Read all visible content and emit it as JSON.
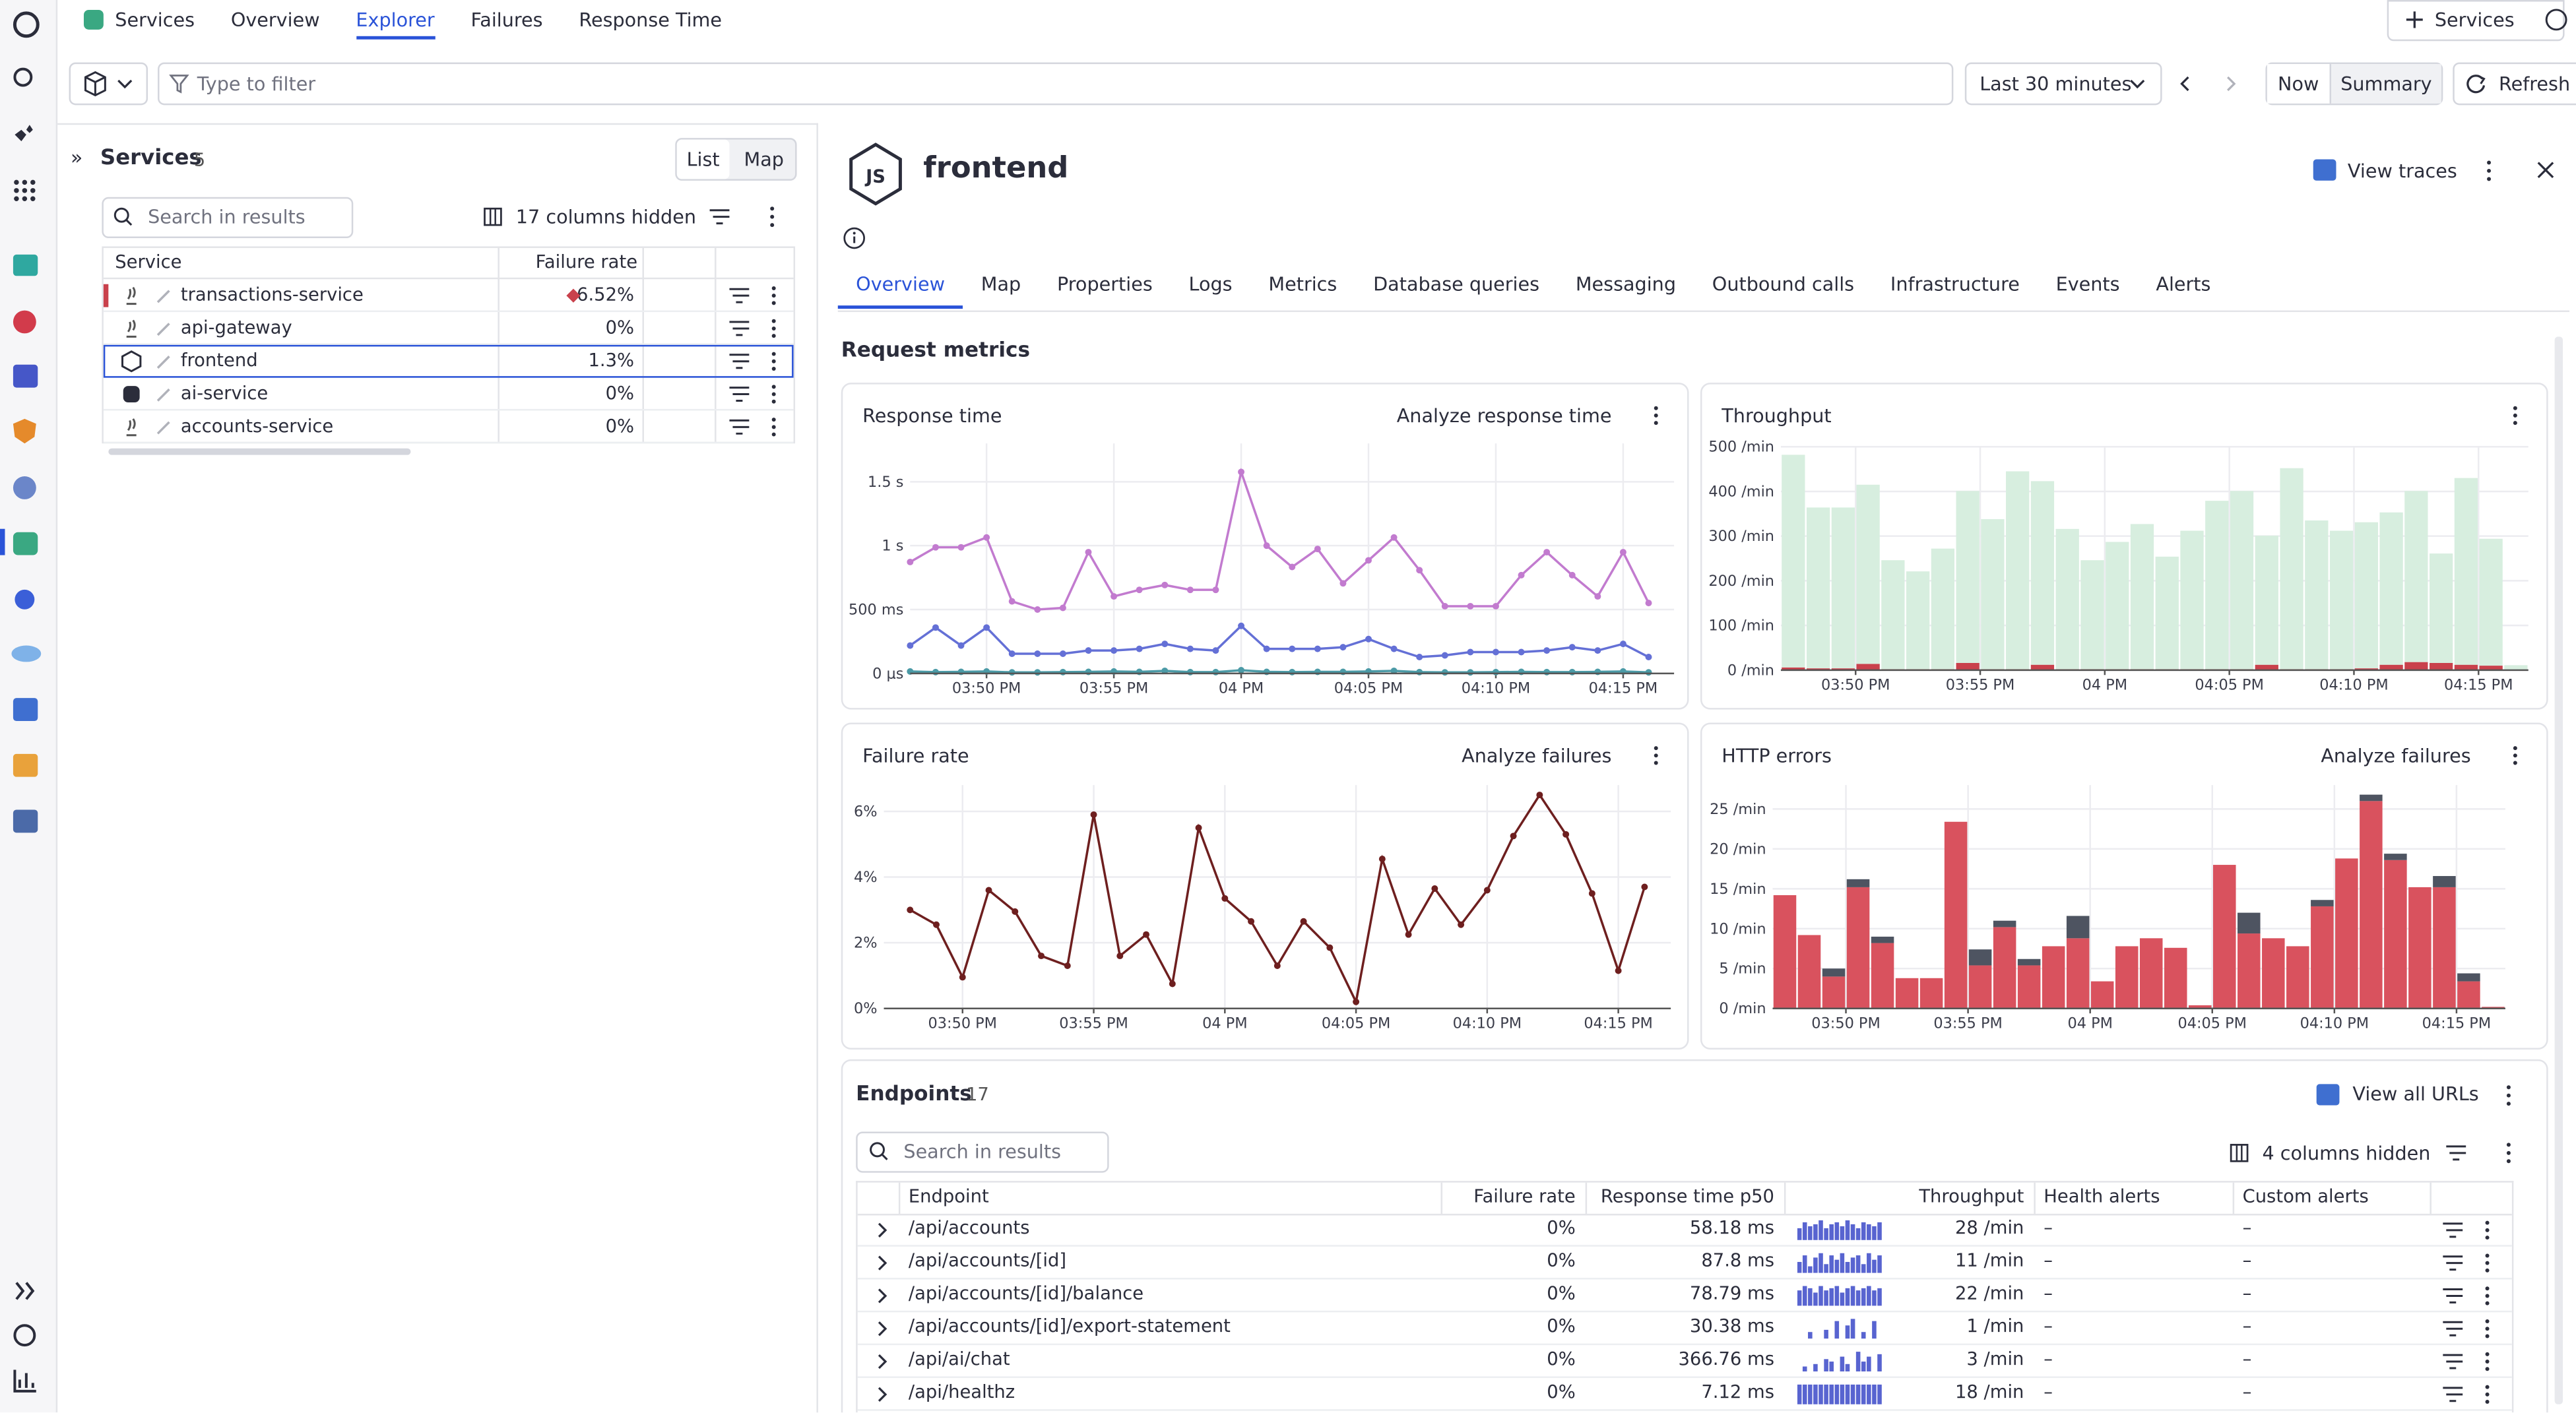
{
  "nav": {
    "tabs": [
      "Services",
      "Overview",
      "Explorer",
      "Failures",
      "Response Time"
    ],
    "add_button": "Services"
  },
  "filter": {
    "placeholder": "Type to filter",
    "timeframe": "Last 30 minutes",
    "now": "Now",
    "summary": "Summary",
    "refresh": "Refresh"
  },
  "services_panel": {
    "title": "Services",
    "count": 5,
    "views": [
      "List",
      "Map"
    ],
    "search_placeholder": "Search in results",
    "columns_hidden": "17 columns hidden",
    "columns": [
      "Service",
      "Failure rate"
    ],
    "rows": [
      {
        "name": "transactions-service",
        "failure_rate": "6.52%"
      },
      {
        "name": "api-gateway",
        "failure_rate": "0%"
      },
      {
        "name": "frontend",
        "failure_rate": "1.3%"
      },
      {
        "name": "ai-service",
        "failure_rate": "0%"
      },
      {
        "name": "accounts-service",
        "failure_rate": "0%"
      }
    ]
  },
  "detail": {
    "title": "frontend",
    "view_traces": "View traces",
    "tabs": [
      "Overview",
      "Map",
      "Properties",
      "Logs",
      "Metrics",
      "Database queries",
      "Messaging",
      "Outbound calls",
      "Infrastructure",
      "Events",
      "Alerts"
    ],
    "section_title": "Request metrics"
  },
  "chart_data": [
    {
      "type": "line",
      "title": "Response time",
      "action": "Analyze response time",
      "grid": true,
      "x": [
        "15:47",
        "15:48",
        "15:49",
        "15:50",
        "15:51",
        "15:52",
        "15:53",
        "15:54",
        "15:55",
        "15:56",
        "15:57",
        "15:58",
        "15:59",
        "16:00",
        "16:01",
        "16:02",
        "16:03",
        "16:04",
        "16:05",
        "16:06",
        "16:07",
        "16:08",
        "16:09",
        "16:10",
        "16:11",
        "16:12",
        "16:13",
        "16:14",
        "16:15",
        "16:16"
      ],
      "xlim": [
        "15:47",
        "16:17"
      ],
      "xticks": [
        {
          "value": "15:50",
          "label": "03:50 PM"
        },
        {
          "value": "15:55",
          "label": "03:55 PM"
        },
        {
          "value": "16:00",
          "label": "04 PM"
        },
        {
          "value": "16:05",
          "label": "04:05 PM"
        },
        {
          "value": "16:10",
          "label": "04:10 PM"
        },
        {
          "value": "16:15",
          "label": "04:15 PM"
        }
      ],
      "ylim": [
        0,
        1800
      ],
      "yticks": [
        {
          "value": 0,
          "label": "0 μs"
        },
        {
          "value": 500,
          "label": "500 ms"
        },
        {
          "value": 1000,
          "label": "1 s"
        },
        {
          "value": 1500,
          "label": "1.5 s"
        }
      ],
      "series": [
        {
          "color": "#c27bcf",
          "values": [
            872,
            987,
            987,
            1064,
            564,
            500,
            513,
            949,
            603,
            654,
            692,
            654,
            654,
            1577,
            1000,
            833,
            974,
            705,
            885,
            1064,
            808,
            526,
            526,
            526,
            769,
            949,
            769,
            603,
            949,
            551
          ]
        },
        {
          "color": "#6470d6",
          "values": [
            218,
            359,
            218,
            359,
            154,
            154,
            154,
            179,
            179,
            192,
            231,
            192,
            179,
            372,
            192,
            192,
            192,
            205,
            269,
            192,
            128,
            141,
            167,
            167,
            167,
            179,
            205,
            179,
            231,
            128
          ]
        },
        {
          "color": "#4b9aa6",
          "values": [
            15,
            10,
            12,
            15,
            8,
            8,
            10,
            12,
            15,
            12,
            20,
            10,
            10,
            25,
            12,
            10,
            12,
            12,
            15,
            20,
            10,
            8,
            8,
            10,
            12,
            10,
            10,
            12,
            15,
            8
          ]
        }
      ]
    },
    {
      "type": "bar",
      "stacked": true,
      "title": "Throughput",
      "grid": true,
      "x": [
        "15:47",
        "15:48",
        "15:49",
        "15:50",
        "15:51",
        "15:52",
        "15:53",
        "15:54",
        "15:55",
        "15:56",
        "15:57",
        "15:58",
        "15:59",
        "16:00",
        "16:01",
        "16:02",
        "16:03",
        "16:04",
        "16:05",
        "16:06",
        "16:07",
        "16:08",
        "16:09",
        "16:10",
        "16:11",
        "16:12",
        "16:13",
        "16:14",
        "16:15",
        "16:16"
      ],
      "xlim": [
        "15:47",
        "16:17"
      ],
      "xticks": [
        {
          "value": "15:50",
          "label": "03:50 PM"
        },
        {
          "value": "15:55",
          "label": "03:55 PM"
        },
        {
          "value": "16:00",
          "label": "04 PM"
        },
        {
          "value": "16:05",
          "label": "04:05 PM"
        },
        {
          "value": "16:10",
          "label": "04:10 PM"
        },
        {
          "value": "16:15",
          "label": "04:15 PM"
        }
      ],
      "ylim": [
        0,
        500
      ],
      "yticks": [
        {
          "value": 0,
          "label": "0 /min"
        },
        {
          "value": 100,
          "label": "100 /min"
        },
        {
          "value": 200,
          "label": "200 /min"
        },
        {
          "value": 300,
          "label": "300 /min"
        },
        {
          "value": 400,
          "label": "400 /min"
        },
        {
          "value": 500,
          "label": "500 /min"
        }
      ],
      "series": [
        {
          "color": "#c9414c",
          "values": [
            6,
            4,
            4,
            14,
            2,
            2,
            2,
            16,
            2,
            2,
            12,
            2,
            2,
            2,
            2,
            2,
            2,
            2,
            2,
            12,
            2,
            2,
            2,
            4,
            12,
            18,
            16,
            12,
            10,
            0
          ]
        },
        {
          "color": "#d7eedf",
          "values": [
            476,
            360,
            360,
            401,
            244,
            219,
            270,
            385,
            336,
            443,
            411,
            314,
            244,
            285,
            325,
            252,
            310,
            377,
            399,
            289,
            450,
            333,
            310,
            327,
            341,
            383,
            245,
            418,
            284,
            11
          ]
        }
      ]
    },
    {
      "type": "line",
      "title": "Failure rate",
      "action": "Analyze failures",
      "grid": true,
      "x": [
        "15:48",
        "15:49",
        "15:50",
        "15:51",
        "15:52",
        "15:53",
        "15:54",
        "15:55",
        "15:56",
        "15:57",
        "15:58",
        "15:59",
        "16:00",
        "16:01",
        "16:02",
        "16:03",
        "16:04",
        "16:05",
        "16:06",
        "16:07",
        "16:08",
        "16:09",
        "16:10",
        "16:11",
        "16:12",
        "16:13",
        "16:14",
        "16:15",
        "16:16"
      ],
      "xlim": [
        "15:47",
        "16:17"
      ],
      "xticks": [
        {
          "value": "15:50",
          "label": "03:50 PM"
        },
        {
          "value": "15:55",
          "label": "03:55 PM"
        },
        {
          "value": "16:00",
          "label": "04 PM"
        },
        {
          "value": "16:05",
          "label": "04:05 PM"
        },
        {
          "value": "16:10",
          "label": "04:10 PM"
        },
        {
          "value": "16:15",
          "label": "04:15 PM"
        }
      ],
      "ylim": [
        0,
        6.8
      ],
      "yticks": [
        {
          "value": 0,
          "label": "0%"
        },
        {
          "value": 2,
          "label": "2%"
        },
        {
          "value": 4,
          "label": "4%"
        },
        {
          "value": 6,
          "label": "6%"
        }
      ],
      "series": [
        {
          "color": "#6e1f1f",
          "values": [
            3.0,
            2.55,
            0.95,
            3.6,
            2.95,
            1.6,
            1.3,
            5.9,
            1.6,
            2.25,
            0.75,
            5.5,
            3.35,
            2.65,
            1.3,
            2.65,
            1.85,
            0.2,
            4.55,
            2.25,
            3.65,
            2.55,
            3.6,
            5.25,
            6.5,
            5.3,
            3.5,
            1.15,
            3.7
          ]
        }
      ]
    },
    {
      "type": "bar",
      "stacked": true,
      "title": "HTTP errors",
      "action": "Analyze failures",
      "grid": true,
      "x": [
        "15:47",
        "15:48",
        "15:49",
        "15:50",
        "15:51",
        "15:52",
        "15:53",
        "15:54",
        "15:55",
        "15:56",
        "15:57",
        "15:58",
        "15:59",
        "16:00",
        "16:01",
        "16:02",
        "16:03",
        "16:04",
        "16:05",
        "16:06",
        "16:07",
        "16:08",
        "16:09",
        "16:10",
        "16:11",
        "16:12",
        "16:13",
        "16:14",
        "16:15",
        "16:16"
      ],
      "xlim": [
        "15:47",
        "16:17"
      ],
      "xticks": [
        {
          "value": "15:50",
          "label": "03:50 PM"
        },
        {
          "value": "15:55",
          "label": "03:55 PM"
        },
        {
          "value": "16:00",
          "label": "04 PM"
        },
        {
          "value": "16:05",
          "label": "04:05 PM"
        },
        {
          "value": "16:10",
          "label": "04:10 PM"
        },
        {
          "value": "16:15",
          "label": "04:15 PM"
        }
      ],
      "ylim": [
        0,
        28
      ],
      "yticks": [
        {
          "value": 0,
          "label": "0 /min"
        },
        {
          "value": 5,
          "label": "5 /min"
        },
        {
          "value": 10,
          "label": "10 /min"
        },
        {
          "value": 15,
          "label": "15 /min"
        },
        {
          "value": 20,
          "label": "20 /min"
        },
        {
          "value": 25,
          "label": "25 /min"
        }
      ],
      "series": [
        {
          "color": "#d9525e",
          "values": [
            14.2,
            9.2,
            4,
            15.2,
            8.2,
            3.8,
            3.8,
            23.4,
            5.4,
            10.2,
            5.4,
            7.8,
            8.8,
            3.4,
            7.8,
            8.8,
            7.6,
            0.4,
            18,
            9.4,
            8.8,
            7.8,
            12.8,
            18.8,
            26,
            18.6,
            15.2,
            15.2,
            3.4,
            0.2
          ]
        },
        {
          "color": "#4e5461",
          "values": [
            0,
            0,
            1,
            1,
            0.8,
            0,
            0,
            0,
            2,
            0.8,
            0.8,
            0,
            2.8,
            0,
            0,
            0,
            0,
            0,
            0,
            2.6,
            0,
            0,
            0.8,
            0,
            0.8,
            0.8,
            0,
            1.4,
            1,
            0
          ]
        }
      ]
    }
  ],
  "endpoints": {
    "title": "Endpoints",
    "count": 17,
    "view_all": "View all URLs",
    "search_placeholder": "Search in results",
    "columns_hidden": "4 columns hidden",
    "columns": [
      "Endpoint",
      "Failure rate",
      "Response time p50",
      "Throughput",
      "Health alerts",
      "Custom alerts"
    ],
    "rows": [
      {
        "endpoint": "/api/accounts",
        "failure_rate": "0%",
        "response_time": "58.18 ms",
        "trend": [
          6,
          9,
          7,
          8,
          10,
          6,
          8,
          9,
          7,
          10,
          8,
          6,
          9,
          8,
          7,
          9
        ],
        "throughput": "28 /min",
        "health_alerts": "–",
        "custom_alerts": "–"
      },
      {
        "endpoint": "/api/accounts/[id]",
        "failure_rate": "0%",
        "response_time": "87.8 ms",
        "trend": [
          5,
          8,
          3,
          7,
          9,
          4,
          8,
          6,
          9,
          5,
          7,
          8,
          4,
          9,
          6,
          8
        ],
        "throughput": "11 /min",
        "health_alerts": "–",
        "custom_alerts": "–"
      },
      {
        "endpoint": "/api/accounts/[id]/balance",
        "failure_rate": "0%",
        "response_time": "78.79 ms",
        "trend": [
          7,
          9,
          8,
          6,
          9,
          7,
          8,
          9,
          6,
          8,
          9,
          7,
          8,
          9,
          7,
          8
        ],
        "throughput": "22 /min",
        "health_alerts": "–",
        "custom_alerts": "–"
      },
      {
        "endpoint": "/api/accounts/[id]/export-statement",
        "failure_rate": "0%",
        "response_time": "30.38 ms",
        "trend": [
          0,
          0,
          3,
          0,
          0,
          4,
          0,
          8,
          0,
          6,
          9,
          0,
          3,
          0,
          8,
          0
        ],
        "throughput": "1 /min",
        "health_alerts": "–",
        "custom_alerts": "–"
      },
      {
        "endpoint": "/api/ai/chat",
        "failure_rate": "0%",
        "response_time": "366.76 ms",
        "trend": [
          0,
          2,
          0,
          3,
          0,
          5,
          4,
          0,
          6,
          3,
          0,
          8,
          4,
          6,
          0,
          7
        ],
        "throughput": "3 /min",
        "health_alerts": "–",
        "custom_alerts": "–"
      },
      {
        "endpoint": "/api/healthz",
        "failure_rate": "0%",
        "response_time": "7.12 ms",
        "trend": [
          9,
          9,
          9,
          9,
          9,
          9,
          9,
          9,
          9,
          9,
          9,
          9,
          9,
          9,
          9,
          9
        ],
        "throughput": "18 /min",
        "health_alerts": "–",
        "custom_alerts": "–"
      }
    ]
  }
}
